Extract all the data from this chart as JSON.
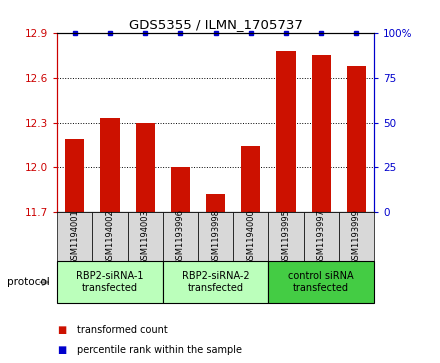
{
  "title": "GDS5355 / ILMN_1705737",
  "samples": [
    "GSM1194001",
    "GSM1194002",
    "GSM1194003",
    "GSM1193996",
    "GSM1193998",
    "GSM1194000",
    "GSM1193995",
    "GSM1193997",
    "GSM1193999"
  ],
  "bar_values": [
    12.19,
    12.33,
    12.3,
    12.0,
    11.82,
    12.14,
    12.78,
    12.75,
    12.68
  ],
  "percentile_values": [
    100,
    100,
    100,
    100,
    100,
    100,
    100,
    100,
    100
  ],
  "ylim_left": [
    11.7,
    12.9
  ],
  "ylim_right": [
    0,
    100
  ],
  "yticks_left": [
    11.7,
    12.0,
    12.3,
    12.6,
    12.9
  ],
  "yticks_right": [
    0,
    25,
    50,
    75,
    100
  ],
  "bar_color": "#cc1100",
  "percentile_color": "#0000cc",
  "groups": [
    {
      "label": "RBP2-siRNA-1\ntransfected",
      "start": 0,
      "end": 3,
      "color": "#bbffbb"
    },
    {
      "label": "RBP2-siRNA-2\ntransfected",
      "start": 3,
      "end": 6,
      "color": "#bbffbb"
    },
    {
      "label": "control siRNA\ntransfected",
      "start": 6,
      "end": 9,
      "color": "#44cc44"
    }
  ],
  "protocol_label": "protocol",
  "legend_items": [
    {
      "label": "transformed count",
      "color": "#cc1100"
    },
    {
      "label": "percentile rank within the sample",
      "color": "#0000cc"
    }
  ],
  "tick_color_left": "#cc0000",
  "tick_color_right": "#0000cc",
  "sample_box_color": "#d8d8d8",
  "grid_yticks": [
    12.0,
    12.3,
    12.6
  ],
  "bar_width": 0.55
}
